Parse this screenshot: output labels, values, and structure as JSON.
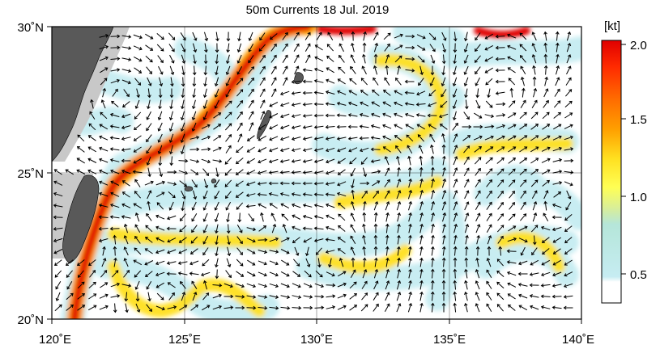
{
  "title": "50m Currents  18 Jul. 2019",
  "map": {
    "lon_range": [
      120,
      140
    ],
    "lat_range": [
      20,
      30
    ],
    "lon_ticks": [
      "120˚E",
      "125˚E",
      "130˚E",
      "135˚E",
      "140˚E"
    ],
    "lat_ticks": [
      "20˚N",
      "25˚N",
      "30˚N"
    ],
    "grid": true,
    "land_color": "#595959",
    "shelf_color": "#c8c8c8"
  },
  "colorbar": {
    "unit": "[kt]",
    "ticks": [
      "0.5",
      "1.0",
      "1.5",
      "2.0"
    ],
    "range": [
      0.25,
      2.0
    ],
    "colors": [
      "#ffffff",
      "#c6ecf2",
      "#b5e6d9",
      "#d8ee9a",
      "#ffff55",
      "#ffe020",
      "#ffa000",
      "#ff6a00",
      "#ff2a00",
      "#e00000"
    ]
  }
}
